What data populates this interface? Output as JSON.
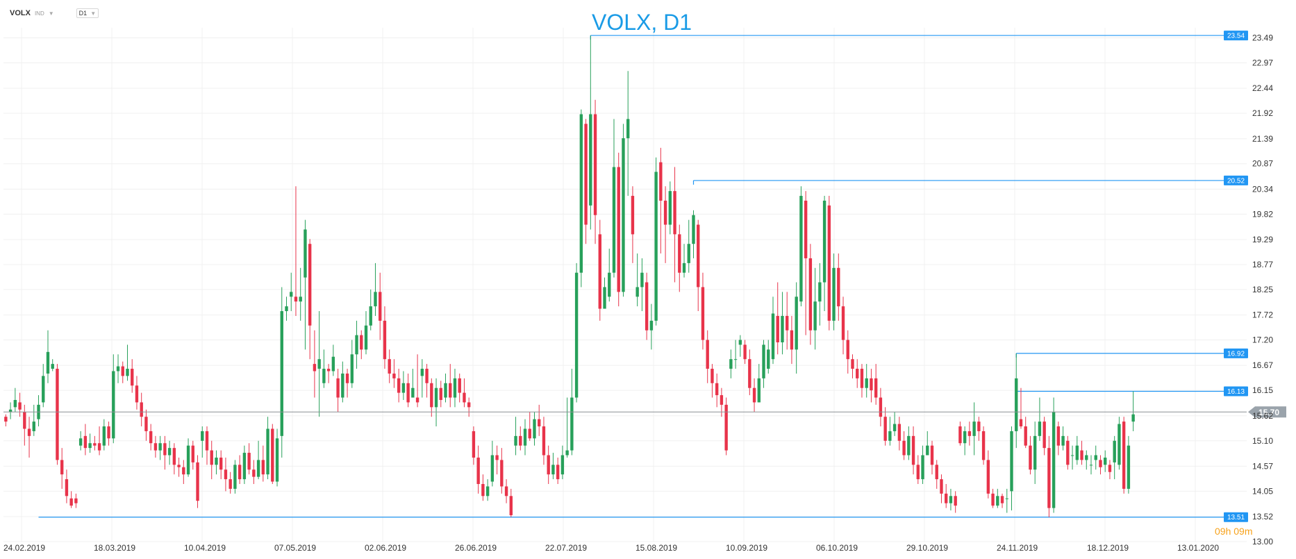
{
  "toolbar": {
    "symbol": "VOLX",
    "symbol_type": "IND",
    "timeframe": "D1"
  },
  "countdown": {
    "hours": "09",
    "h_unit": "h",
    "minutes": "09",
    "m_unit": "m"
  },
  "colors": {
    "up": "#27a05a",
    "down": "#e8334a",
    "level_line": "#2196f3",
    "title": "#1a9be6",
    "grid": "#f0f0f0",
    "current_badge": "#9aa3ab"
  },
  "chart_data": {
    "type": "candlestick",
    "title": "VOLX, D1",
    "ylim": [
      13.0,
      23.7
    ],
    "y_ticks": [
      13.0,
      13.52,
      14.05,
      14.57,
      15.1,
      15.62,
      16.15,
      16.67,
      17.2,
      17.72,
      18.25,
      18.77,
      19.29,
      19.82,
      20.34,
      20.87,
      21.39,
      21.92,
      22.44,
      22.97,
      23.49
    ],
    "x_tick_labels": [
      "24.02.2019",
      "18.03.2019",
      "10.04.2019",
      "07.05.2019",
      "02.06.2019",
      "26.06.2019",
      "22.07.2019",
      "15.08.2019",
      "10.09.2019",
      "06.10.2019",
      "29.10.2019",
      "24.11.2019",
      "18.12.2019",
      "13.01.2020"
    ],
    "current_price": 15.7,
    "levels": [
      23.54,
      20.52,
      16.92,
      16.13,
      13.51
    ],
    "grid": true,
    "candles": [
      [
        15.6,
        15.5,
        15.65,
        15.4
      ],
      [
        15.7,
        15.75,
        15.9,
        15.55
      ],
      [
        15.8,
        15.95,
        16.2,
        15.7
      ],
      [
        15.9,
        15.75,
        16.1,
        15.6
      ],
      [
        15.7,
        15.35,
        15.85,
        15.0
      ],
      [
        15.35,
        15.2,
        15.6,
        14.75
      ],
      [
        15.3,
        15.5,
        15.85,
        15.2
      ],
      [
        15.55,
        15.85,
        16.05,
        15.4
      ],
      [
        15.9,
        16.45,
        16.7,
        15.8
      ],
      [
        16.5,
        16.95,
        17.4,
        16.3
      ],
      [
        16.6,
        16.7,
        16.8,
        16.55
      ],
      [
        16.6,
        14.7,
        16.7,
        14.6
      ],
      [
        14.7,
        14.4,
        14.95,
        14.1
      ],
      [
        14.3,
        13.95,
        14.5,
        13.8
      ],
      [
        13.9,
        13.75,
        14.05,
        13.7
      ],
      [
        13.9,
        13.8,
        14.0,
        13.7
      ],
      [
        15.0,
        15.15,
        15.3,
        14.9
      ],
      [
        15.2,
        14.95,
        15.45,
        14.8
      ],
      [
        14.95,
        15.05,
        15.25,
        14.85
      ],
      [
        15.05,
        15.0,
        15.2,
        14.9
      ],
      [
        15.05,
        14.9,
        15.4,
        14.8
      ],
      [
        15.0,
        15.4,
        15.55,
        14.9
      ],
      [
        15.4,
        15.15,
        15.5,
        15.0
      ],
      [
        15.15,
        16.55,
        16.9,
        15.05
      ],
      [
        16.55,
        16.65,
        16.9,
        16.3
      ],
      [
        16.65,
        16.45,
        16.75,
        16.3
      ],
      [
        16.45,
        16.6,
        17.1,
        16.35
      ],
      [
        16.6,
        16.25,
        16.8,
        16.1
      ],
      [
        16.25,
        15.9,
        16.45,
        15.75
      ],
      [
        15.9,
        15.6,
        16.1,
        15.4
      ],
      [
        15.6,
        15.3,
        15.75,
        15.1
      ],
      [
        15.3,
        15.05,
        15.45,
        14.9
      ],
      [
        15.05,
        14.9,
        15.2,
        14.75
      ],
      [
        14.9,
        15.05,
        15.2,
        14.7
      ],
      [
        15.05,
        14.8,
        15.2,
        14.5
      ],
      [
        14.8,
        14.95,
        15.1,
        14.6
      ],
      [
        14.95,
        14.6,
        15.05,
        14.4
      ],
      [
        14.6,
        14.55,
        14.75,
        14.35
      ],
      [
        14.55,
        14.4,
        14.7,
        14.2
      ],
      [
        14.4,
        15.0,
        15.15,
        14.35
      ],
      [
        15.0,
        14.65,
        15.1,
        14.5
      ],
      [
        14.65,
        13.85,
        14.8,
        13.7
      ],
      [
        15.1,
        15.3,
        15.4,
        14.75
      ],
      [
        15.3,
        14.9,
        15.4,
        14.6
      ],
      [
        14.9,
        14.6,
        15.1,
        14.3
      ],
      [
        14.6,
        14.75,
        14.9,
        14.4
      ],
      [
        14.75,
        14.5,
        14.9,
        14.3
      ],
      [
        14.5,
        14.3,
        14.75,
        14.05
      ],
      [
        14.3,
        14.1,
        14.45,
        14.0
      ],
      [
        14.1,
        14.6,
        14.7,
        14.0
      ],
      [
        14.6,
        14.3,
        14.8,
        14.2
      ],
      [
        14.3,
        14.85,
        15.0,
        14.2
      ],
      [
        14.85,
        14.5,
        15.05,
        14.4
      ],
      [
        14.5,
        14.35,
        14.7,
        14.2
      ],
      [
        14.35,
        14.7,
        15.1,
        14.3
      ],
      [
        14.7,
        14.4,
        15.0,
        14.25
      ],
      [
        14.4,
        15.35,
        15.6,
        14.3
      ],
      [
        15.35,
        14.25,
        15.45,
        14.2
      ],
      [
        14.25,
        15.15,
        15.35,
        14.15
      ],
      [
        15.2,
        17.8,
        18.3,
        14.75
      ],
      [
        17.8,
        17.9,
        18.1,
        17.6
      ],
      [
        18.1,
        18.2,
        18.6,
        17.8
      ],
      [
        18.1,
        18.0,
        20.4,
        17.7
      ],
      [
        18.0,
        18.1,
        18.7,
        17.6
      ],
      [
        18.5,
        19.5,
        19.7,
        17.0
      ],
      [
        19.2,
        17.5,
        19.3,
        16.8
      ],
      [
        16.7,
        16.55,
        17.4,
        16.0
      ],
      [
        16.6,
        16.8,
        17.8,
        15.6
      ],
      [
        16.3,
        16.6,
        17.0,
        16.2
      ],
      [
        16.6,
        16.55,
        16.7,
        16.3
      ],
      [
        16.55,
        16.85,
        17.1,
        16.45
      ],
      [
        16.4,
        16.0,
        16.6,
        15.7
      ],
      [
        16.0,
        16.5,
        16.75,
        15.9
      ],
      [
        16.5,
        16.3,
        16.6,
        16.0
      ],
      [
        16.3,
        16.9,
        17.2,
        16.2
      ],
      [
        16.9,
        17.3,
        17.6,
        16.6
      ],
      [
        17.3,
        17.0,
        17.4,
        16.8
      ],
      [
        17.0,
        17.5,
        17.8,
        16.9
      ],
      [
        17.5,
        17.9,
        18.25,
        17.4
      ],
      [
        17.9,
        18.2,
        18.8,
        17.7
      ],
      [
        18.2,
        17.6,
        18.6,
        17.2
      ],
      [
        17.6,
        16.8,
        17.9,
        16.6
      ],
      [
        16.8,
        16.5,
        17.0,
        16.3
      ],
      [
        16.5,
        16.4,
        16.8,
        16.2
      ],
      [
        16.4,
        16.1,
        16.6,
        15.9
      ],
      [
        16.1,
        16.3,
        16.55,
        15.95
      ],
      [
        16.3,
        15.9,
        16.5,
        15.8
      ],
      [
        16.0,
        16.2,
        16.6,
        16.0
      ],
      [
        16.0,
        15.9,
        16.9,
        15.8
      ],
      [
        16.45,
        16.6,
        16.8,
        16.0
      ],
      [
        16.6,
        16.3,
        16.7,
        16.0
      ],
      [
        16.3,
        15.8,
        16.4,
        15.6
      ],
      [
        15.8,
        16.2,
        16.4,
        15.4
      ],
      [
        16.2,
        15.95,
        16.35,
        15.8
      ],
      [
        16.0,
        16.3,
        16.5,
        15.9
      ],
      [
        16.3,
        16.0,
        16.7,
        15.8
      ],
      [
        16.0,
        16.4,
        16.6,
        15.8
      ],
      [
        16.4,
        16.1,
        16.5,
        15.9
      ],
      [
        16.1,
        15.9,
        16.4,
        15.8
      ],
      [
        15.9,
        15.8,
        16.0,
        15.6
      ],
      [
        15.3,
        14.75,
        15.4,
        14.6
      ],
      [
        14.75,
        14.2,
        15.0,
        14.0
      ],
      [
        14.2,
        13.95,
        14.4,
        13.85
      ],
      [
        13.95,
        14.15,
        14.3,
        13.85
      ],
      [
        14.25,
        14.8,
        15.1,
        14.15
      ],
      [
        14.8,
        14.7,
        15.0,
        14.4
      ],
      [
        14.7,
        14.15,
        14.95,
        14.0
      ],
      [
        14.15,
        13.95,
        14.3,
        13.8
      ],
      [
        13.95,
        13.55,
        14.1,
        13.51
      ],
      [
        15.0,
        15.2,
        15.6,
        14.8
      ],
      [
        15.2,
        15.0,
        15.4,
        14.9
      ],
      [
        15.0,
        15.35,
        15.55,
        14.8
      ],
      [
        15.35,
        15.15,
        15.7,
        15.1
      ],
      [
        15.15,
        15.55,
        15.7,
        15.0
      ],
      [
        15.55,
        15.4,
        15.85,
        15.2
      ],
      [
        15.4,
        14.8,
        15.6,
        14.6
      ],
      [
        14.8,
        14.4,
        15.0,
        14.2
      ],
      [
        14.4,
        14.6,
        14.85,
        14.3
      ],
      [
        14.6,
        14.3,
        14.75,
        14.2
      ],
      [
        14.4,
        14.8,
        15.0,
        14.3
      ],
      [
        14.8,
        14.9,
        16.0,
        14.75
      ],
      [
        14.9,
        16.0,
        16.6,
        14.8
      ],
      [
        16.0,
        18.6,
        18.8,
        15.9
      ],
      [
        18.6,
        21.9,
        22.0,
        18.3
      ],
      [
        21.7,
        19.6,
        21.8,
        19.2
      ],
      [
        20.0,
        21.9,
        23.54,
        19.5
      ],
      [
        21.9,
        19.8,
        22.2,
        19.2
      ],
      [
        19.4,
        17.85,
        19.7,
        17.6
      ],
      [
        17.85,
        18.3,
        18.5,
        18.0
      ],
      [
        18.1,
        18.6,
        19.1,
        18.0
      ],
      [
        18.6,
        20.8,
        21.8,
        18.5
      ],
      [
        20.8,
        18.2,
        21.1,
        17.9
      ],
      [
        18.2,
        21.4,
        21.7,
        18.1
      ],
      [
        21.4,
        21.8,
        22.8,
        20.2
      ],
      [
        20.2,
        19.4,
        20.4,
        18.8
      ],
      [
        18.1,
        18.3,
        19.0,
        17.9
      ],
      [
        18.3,
        18.6,
        18.9,
        17.8
      ],
      [
        18.4,
        17.4,
        18.6,
        17.2
      ],
      [
        17.4,
        17.6,
        17.95,
        17.0
      ],
      [
        17.6,
        20.7,
        21.0,
        17.5
      ],
      [
        20.9,
        20.1,
        21.2,
        19.0
      ],
      [
        20.1,
        19.6,
        20.4,
        18.8
      ],
      [
        19.6,
        20.3,
        20.5,
        19.4
      ],
      [
        20.3,
        19.4,
        20.8,
        18.4
      ],
      [
        19.4,
        18.6,
        19.6,
        18.2
      ],
      [
        18.6,
        18.8,
        19.2,
        18.5
      ],
      [
        18.8,
        19.2,
        19.7,
        18.6
      ],
      [
        19.2,
        19.8,
        19.9,
        18.9
      ],
      [
        19.6,
        18.3,
        19.7,
        17.8
      ],
      [
        18.3,
        17.2,
        18.6,
        17.0
      ],
      [
        17.2,
        16.6,
        17.4,
        16.3
      ],
      [
        16.6,
        16.3,
        16.7,
        16.0
      ],
      [
        16.3,
        16.05,
        16.5,
        15.8
      ],
      [
        16.05,
        15.85,
        16.2,
        15.6
      ],
      [
        15.85,
        14.9,
        16.0,
        14.8
      ],
      [
        16.6,
        16.8,
        17.0,
        16.4
      ],
      [
        16.8,
        16.8,
        17.2,
        16.6
      ],
      [
        17.1,
        17.2,
        17.3,
        16.85
      ],
      [
        17.1,
        16.8,
        17.2,
        16.7
      ],
      [
        16.8,
        16.2,
        17.0,
        16.05
      ],
      [
        16.2,
        15.9,
        16.4,
        15.7
      ],
      [
        15.9,
        16.4,
        16.7,
        15.9
      ],
      [
        16.4,
        17.1,
        17.2,
        16.2
      ],
      [
        16.6,
        17.0,
        17.2,
        16.5
      ],
      [
        16.8,
        17.75,
        18.1,
        16.7
      ],
      [
        17.7,
        17.15,
        18.4,
        16.9
      ],
      [
        17.15,
        17.7,
        18.2,
        16.9
      ],
      [
        17.7,
        17.4,
        18.2,
        17.0
      ],
      [
        17.4,
        17.0,
        17.7,
        16.7
      ],
      [
        17.0,
        18.1,
        18.4,
        16.5
      ],
      [
        18.0,
        20.2,
        20.4,
        17.9
      ],
      [
        20.1,
        18.9,
        20.3,
        17.3
      ],
      [
        18.9,
        17.4,
        19.2,
        17.1
      ],
      [
        17.4,
        18.0,
        18.7,
        17.0
      ],
      [
        18.0,
        18.4,
        18.8,
        17.5
      ],
      [
        18.4,
        20.1,
        20.2,
        17.8
      ],
      [
        20.0,
        17.6,
        20.2,
        17.4
      ],
      [
        17.6,
        18.7,
        19.0,
        17.4
      ],
      [
        18.7,
        17.9,
        19.0,
        17.6
      ],
      [
        17.9,
        17.2,
        18.1,
        16.9
      ],
      [
        17.2,
        16.8,
        17.4,
        16.5
      ],
      [
        16.8,
        16.6,
        16.9,
        16.4
      ],
      [
        16.6,
        16.4,
        16.8,
        16.2
      ],
      [
        16.6,
        16.2,
        16.7,
        16.0
      ],
      [
        16.2,
        16.4,
        16.7,
        16.0
      ],
      [
        16.4,
        16.15,
        16.6,
        15.9
      ],
      [
        16.4,
        16.0,
        16.7,
        15.85
      ],
      [
        16.0,
        15.6,
        16.2,
        15.4
      ],
      [
        15.6,
        15.1,
        15.8,
        15.0
      ],
      [
        15.1,
        15.3,
        15.6,
        15.0
      ],
      [
        15.3,
        15.45,
        15.7,
        15.2
      ],
      [
        15.45,
        15.1,
        15.6,
        14.9
      ],
      [
        15.1,
        14.8,
        15.3,
        14.7
      ],
      [
        14.8,
        15.2,
        15.4,
        14.7
      ],
      [
        15.2,
        14.6,
        15.4,
        14.4
      ],
      [
        14.6,
        14.3,
        14.8,
        14.2
      ],
      [
        14.3,
        14.8,
        15.0,
        14.2
      ],
      [
        14.8,
        15.0,
        15.3,
        14.8
      ],
      [
        15.0,
        14.6,
        15.1,
        14.4
      ],
      [
        14.6,
        14.3,
        14.7,
        14.1
      ],
      [
        14.3,
        14.0,
        14.4,
        13.8
      ],
      [
        14.0,
        13.8,
        14.2,
        13.7
      ],
      [
        13.8,
        13.95,
        14.1,
        13.65
      ],
      [
        13.95,
        13.75,
        14.05,
        13.6
      ],
      [
        15.4,
        15.05,
        15.5,
        15.0
      ],
      [
        15.05,
        15.3,
        15.4,
        14.8
      ],
      [
        15.3,
        15.2,
        15.5,
        15.0
      ],
      [
        15.2,
        15.5,
        15.9,
        14.8
      ],
      [
        15.5,
        15.3,
        15.6,
        15.1
      ],
      [
        15.3,
        14.7,
        15.4,
        14.6
      ],
      [
        14.7,
        14.0,
        14.9,
        13.9
      ],
      [
        14.0,
        13.75,
        14.1,
        13.7
      ],
      [
        13.75,
        13.95,
        14.1,
        13.7
      ],
      [
        13.95,
        13.8,
        14.0,
        13.7
      ],
      [
        13.9,
        13.9,
        14.1,
        13.6
      ],
      [
        14.05,
        15.3,
        15.4,
        13.65
      ],
      [
        15.3,
        16.4,
        16.92,
        14.95
      ],
      [
        15.55,
        15.4,
        16.2,
        15.35
      ],
      [
        15.4,
        15.0,
        15.6,
        14.95
      ],
      [
        15.0,
        14.5,
        15.2,
        14.4
      ],
      [
        14.5,
        15.2,
        15.5,
        14.2
      ],
      [
        15.2,
        15.5,
        16.0,
        15.1
      ],
      [
        15.5,
        14.95,
        15.6,
        14.8
      ],
      [
        14.95,
        13.7,
        15.2,
        13.51
      ],
      [
        13.7,
        15.7,
        16.0,
        13.6
      ],
      [
        15.4,
        15.0,
        15.5,
        14.8
      ],
      [
        15.0,
        15.2,
        15.4,
        14.9
      ],
      [
        15.1,
        14.6,
        15.2,
        14.5
      ],
      [
        14.8,
        14.8,
        15.0,
        14.5
      ],
      [
        14.7,
        15.0,
        15.2,
        14.6
      ],
      [
        14.9,
        14.7,
        15.1,
        14.6
      ],
      [
        14.7,
        14.8,
        14.9,
        14.5
      ],
      [
        14.6,
        14.6,
        14.8,
        14.4
      ],
      [
        14.7,
        14.8,
        15.0,
        14.5
      ],
      [
        14.7,
        14.55,
        14.8,
        14.4
      ],
      [
        14.6,
        14.75,
        14.9,
        14.45
      ],
      [
        14.6,
        14.45,
        14.7,
        14.3
      ],
      [
        14.65,
        15.1,
        15.2,
        14.3
      ],
      [
        14.6,
        15.45,
        15.6,
        14.5
      ],
      [
        15.5,
        14.1,
        15.6,
        14.0
      ],
      [
        14.1,
        15.0,
        15.2,
        14.0
      ],
      [
        15.5,
        15.65,
        16.13,
        15.3
      ]
    ]
  }
}
